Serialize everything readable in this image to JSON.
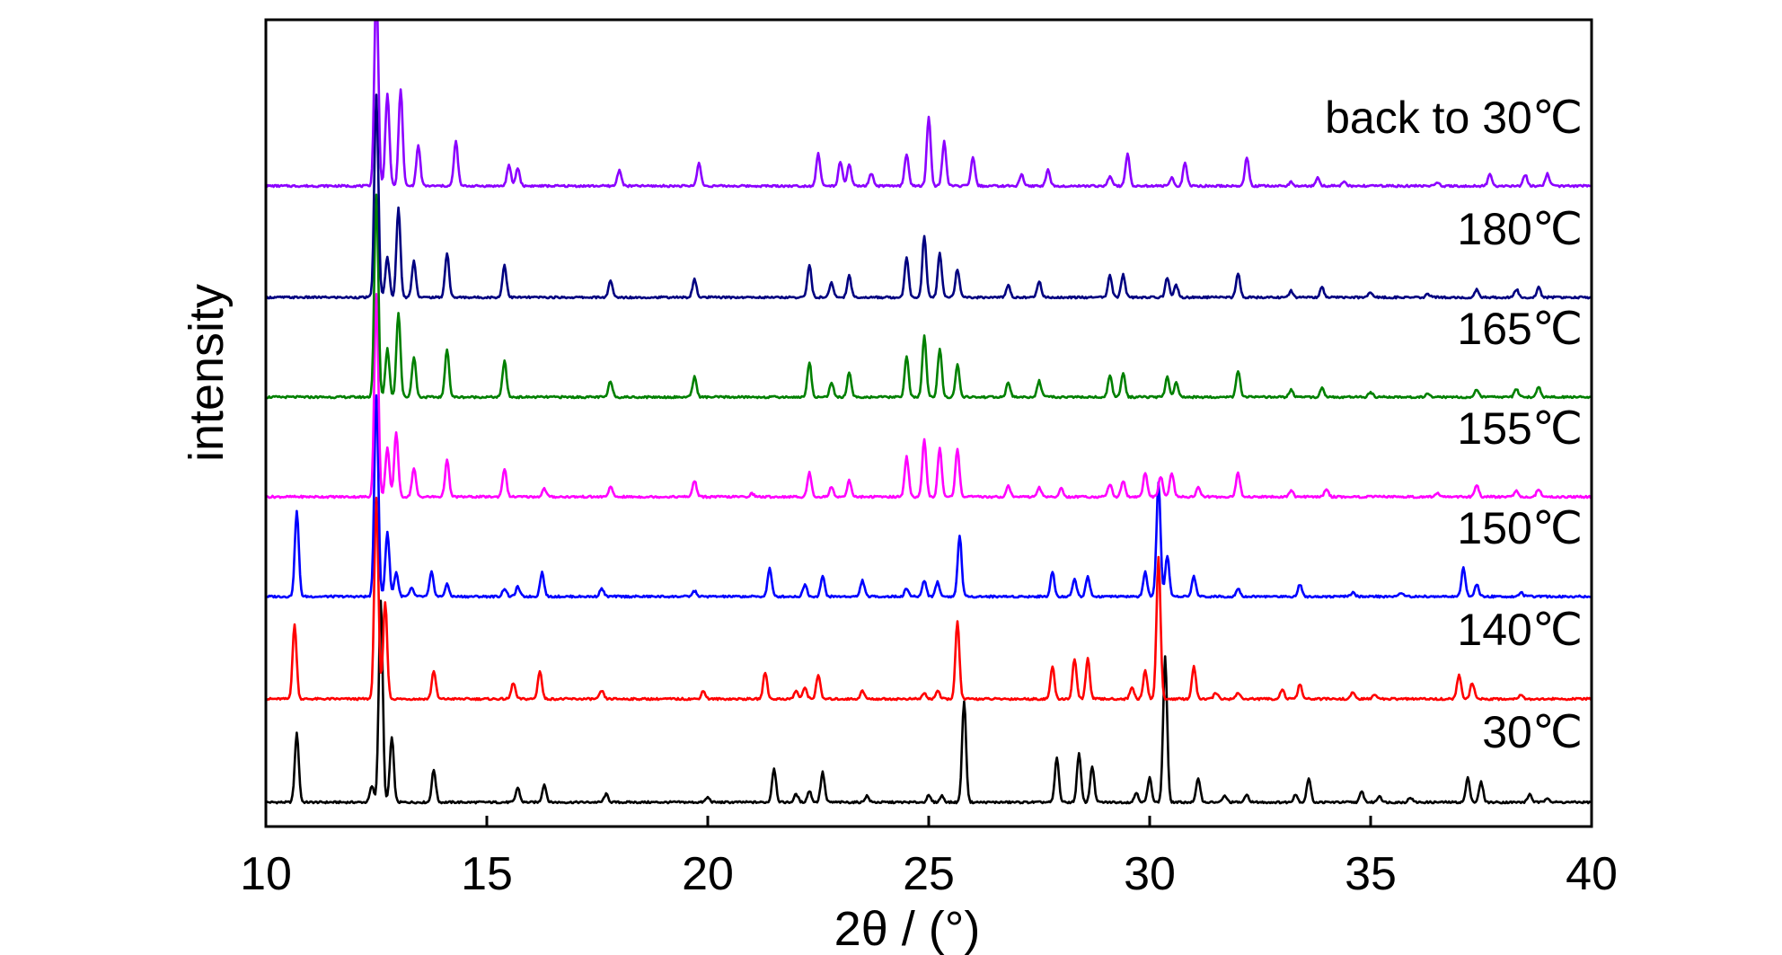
{
  "chart_data": {
    "type": "line",
    "title": "",
    "xlabel": "2θ / (°)",
    "ylabel": "intensity",
    "xlim": [
      10,
      40
    ],
    "xticks": [
      10,
      15,
      20,
      25,
      30,
      35,
      40
    ],
    "x_tick_labels": [
      "10",
      "15",
      "20",
      "25",
      "30",
      "35",
      "40"
    ],
    "y_ticks_shown": false,
    "grid": false,
    "legend": "labels placed at right end of each trace",
    "series": [
      {
        "name": "30℃",
        "color": "#000000",
        "peaks": [
          [
            10.7,
            0.85
          ],
          [
            12.4,
            0.2
          ],
          [
            12.6,
            2.5
          ],
          [
            12.85,
            0.8
          ],
          [
            13.8,
            0.4
          ],
          [
            15.7,
            0.18
          ],
          [
            16.3,
            0.22
          ],
          [
            17.7,
            0.1
          ],
          [
            20.0,
            0.06
          ],
          [
            21.5,
            0.42
          ],
          [
            22.0,
            0.1
          ],
          [
            22.3,
            0.14
          ],
          [
            22.6,
            0.37
          ],
          [
            23.6,
            0.08
          ],
          [
            25.0,
            0.08
          ],
          [
            25.3,
            0.08
          ],
          [
            25.8,
            1.25
          ],
          [
            27.9,
            0.55
          ],
          [
            28.4,
            0.6
          ],
          [
            28.7,
            0.45
          ],
          [
            29.7,
            0.12
          ],
          [
            30.0,
            0.3
          ],
          [
            30.35,
            1.8
          ],
          [
            31.1,
            0.3
          ],
          [
            31.7,
            0.08
          ],
          [
            32.2,
            0.09
          ],
          [
            33.3,
            0.1
          ],
          [
            33.6,
            0.3
          ],
          [
            34.8,
            0.13
          ],
          [
            35.2,
            0.08
          ],
          [
            35.9,
            0.06
          ],
          [
            37.2,
            0.3
          ],
          [
            37.5,
            0.25
          ],
          [
            38.6,
            0.1
          ],
          [
            39.0,
            0.06
          ]
        ]
      },
      {
        "name": "140℃",
        "color": "#ff0000",
        "peaks": [
          [
            10.65,
            0.92
          ],
          [
            12.5,
            2.5
          ],
          [
            12.7,
            1.2
          ],
          [
            13.8,
            0.35
          ],
          [
            15.6,
            0.2
          ],
          [
            16.2,
            0.35
          ],
          [
            17.6,
            0.1
          ],
          [
            19.9,
            0.1
          ],
          [
            21.3,
            0.33
          ],
          [
            22.0,
            0.1
          ],
          [
            22.2,
            0.14
          ],
          [
            22.5,
            0.3
          ],
          [
            23.5,
            0.1
          ],
          [
            24.9,
            0.07
          ],
          [
            25.2,
            0.1
          ],
          [
            25.65,
            0.95
          ],
          [
            27.8,
            0.4
          ],
          [
            28.3,
            0.5
          ],
          [
            28.6,
            0.5
          ],
          [
            29.6,
            0.15
          ],
          [
            29.9,
            0.35
          ],
          [
            30.2,
            1.75
          ],
          [
            31.0,
            0.4
          ],
          [
            31.5,
            0.08
          ],
          [
            32.0,
            0.08
          ],
          [
            33.0,
            0.12
          ],
          [
            33.4,
            0.18
          ],
          [
            34.6,
            0.08
          ],
          [
            35.1,
            0.06
          ],
          [
            37.0,
            0.3
          ],
          [
            37.3,
            0.2
          ],
          [
            38.4,
            0.06
          ]
        ]
      },
      {
        "name": "150℃",
        "color": "#0000ff",
        "peaks": [
          [
            10.7,
            1.05
          ],
          [
            12.5,
            2.5
          ],
          [
            12.75,
            0.8
          ],
          [
            12.95,
            0.3
          ],
          [
            13.3,
            0.1
          ],
          [
            13.75,
            0.3
          ],
          [
            14.1,
            0.15
          ],
          [
            15.4,
            0.1
          ],
          [
            15.7,
            0.12
          ],
          [
            16.25,
            0.3
          ],
          [
            17.6,
            0.1
          ],
          [
            19.7,
            0.07
          ],
          [
            21.4,
            0.35
          ],
          [
            22.2,
            0.15
          ],
          [
            22.6,
            0.25
          ],
          [
            23.5,
            0.2
          ],
          [
            24.5,
            0.1
          ],
          [
            24.9,
            0.2
          ],
          [
            25.2,
            0.18
          ],
          [
            25.7,
            0.75
          ],
          [
            27.8,
            0.3
          ],
          [
            28.3,
            0.22
          ],
          [
            28.6,
            0.25
          ],
          [
            29.9,
            0.3
          ],
          [
            30.2,
            1.4
          ],
          [
            30.4,
            0.5
          ],
          [
            31.0,
            0.25
          ],
          [
            32.0,
            0.1
          ],
          [
            33.4,
            0.15
          ],
          [
            34.6,
            0.05
          ],
          [
            35.7,
            0.05
          ],
          [
            37.1,
            0.35
          ],
          [
            37.4,
            0.15
          ],
          [
            38.4,
            0.05
          ]
        ]
      },
      {
        "name": "155℃",
        "color": "#ff00ff",
        "peaks": [
          [
            12.5,
            2.5
          ],
          [
            12.75,
            0.6
          ],
          [
            12.95,
            0.8
          ],
          [
            13.35,
            0.35
          ],
          [
            14.1,
            0.45
          ],
          [
            15.4,
            0.35
          ],
          [
            16.3,
            0.1
          ],
          [
            17.8,
            0.12
          ],
          [
            19.7,
            0.2
          ],
          [
            21.0,
            0.04
          ],
          [
            22.3,
            0.3
          ],
          [
            22.8,
            0.12
          ],
          [
            23.2,
            0.2
          ],
          [
            24.5,
            0.5
          ],
          [
            24.9,
            0.7
          ],
          [
            25.25,
            0.6
          ],
          [
            25.65,
            0.6
          ],
          [
            26.8,
            0.14
          ],
          [
            27.5,
            0.12
          ],
          [
            28.0,
            0.1
          ],
          [
            29.1,
            0.16
          ],
          [
            29.4,
            0.2
          ],
          [
            29.9,
            0.3
          ],
          [
            30.25,
            0.25
          ],
          [
            30.5,
            0.3
          ],
          [
            31.1,
            0.12
          ],
          [
            32.0,
            0.3
          ],
          [
            33.2,
            0.08
          ],
          [
            34.0,
            0.1
          ],
          [
            36.5,
            0.05
          ],
          [
            37.4,
            0.15
          ],
          [
            38.3,
            0.08
          ],
          [
            38.8,
            0.1
          ]
        ]
      },
      {
        "name": "165℃",
        "color": "#008000",
        "peaks": [
          [
            12.5,
            2.5
          ],
          [
            12.75,
            0.6
          ],
          [
            13.0,
            1.05
          ],
          [
            13.35,
            0.5
          ],
          [
            14.1,
            0.6
          ],
          [
            15.4,
            0.45
          ],
          [
            17.8,
            0.2
          ],
          [
            19.7,
            0.25
          ],
          [
            22.3,
            0.43
          ],
          [
            22.8,
            0.18
          ],
          [
            23.2,
            0.3
          ],
          [
            24.5,
            0.5
          ],
          [
            24.9,
            0.75
          ],
          [
            25.25,
            0.6
          ],
          [
            25.65,
            0.4
          ],
          [
            26.8,
            0.18
          ],
          [
            27.5,
            0.2
          ],
          [
            29.1,
            0.27
          ],
          [
            29.4,
            0.3
          ],
          [
            30.4,
            0.25
          ],
          [
            30.6,
            0.18
          ],
          [
            32.0,
            0.33
          ],
          [
            33.2,
            0.09
          ],
          [
            33.9,
            0.12
          ],
          [
            35.0,
            0.06
          ],
          [
            36.3,
            0.05
          ],
          [
            37.4,
            0.09
          ],
          [
            38.3,
            0.1
          ],
          [
            38.8,
            0.13
          ]
        ]
      },
      {
        "name": "180℃",
        "color": "#000080",
        "peaks": [
          [
            12.5,
            2.5
          ],
          [
            12.75,
            0.5
          ],
          [
            13.0,
            1.1
          ],
          [
            13.35,
            0.45
          ],
          [
            14.1,
            0.55
          ],
          [
            15.4,
            0.4
          ],
          [
            17.8,
            0.2
          ],
          [
            19.7,
            0.22
          ],
          [
            22.3,
            0.4
          ],
          [
            22.8,
            0.18
          ],
          [
            23.2,
            0.27
          ],
          [
            24.5,
            0.5
          ],
          [
            24.9,
            0.75
          ],
          [
            25.25,
            0.55
          ],
          [
            25.65,
            0.35
          ],
          [
            26.8,
            0.15
          ],
          [
            27.5,
            0.2
          ],
          [
            29.1,
            0.27
          ],
          [
            29.4,
            0.28
          ],
          [
            30.4,
            0.25
          ],
          [
            30.6,
            0.15
          ],
          [
            32.0,
            0.3
          ],
          [
            33.2,
            0.08
          ],
          [
            33.9,
            0.12
          ],
          [
            35.0,
            0.06
          ],
          [
            36.3,
            0.04
          ],
          [
            37.4,
            0.1
          ],
          [
            38.3,
            0.1
          ],
          [
            38.8,
            0.12
          ]
        ]
      },
      {
        "name": "back to 30℃",
        "color": "#8b00ff",
        "peaks": [
          [
            12.5,
            2.5
          ],
          [
            12.75,
            1.15
          ],
          [
            13.05,
            1.2
          ],
          [
            13.45,
            0.5
          ],
          [
            14.3,
            0.55
          ],
          [
            15.5,
            0.25
          ],
          [
            15.7,
            0.22
          ],
          [
            18.0,
            0.2
          ],
          [
            19.8,
            0.28
          ],
          [
            22.5,
            0.4
          ],
          [
            23.0,
            0.3
          ],
          [
            23.2,
            0.27
          ],
          [
            23.7,
            0.15
          ],
          [
            24.5,
            0.4
          ],
          [
            25.0,
            0.85
          ],
          [
            25.35,
            0.55
          ],
          [
            26.0,
            0.35
          ],
          [
            27.1,
            0.14
          ],
          [
            27.7,
            0.2
          ],
          [
            29.1,
            0.12
          ],
          [
            29.5,
            0.4
          ],
          [
            30.5,
            0.1
          ],
          [
            30.8,
            0.28
          ],
          [
            32.2,
            0.35
          ],
          [
            33.2,
            0.05
          ],
          [
            33.8,
            0.1
          ],
          [
            34.4,
            0.06
          ],
          [
            36.5,
            0.04
          ],
          [
            37.7,
            0.14
          ],
          [
            38.5,
            0.14
          ],
          [
            39.0,
            0.15
          ]
        ]
      }
    ]
  }
}
